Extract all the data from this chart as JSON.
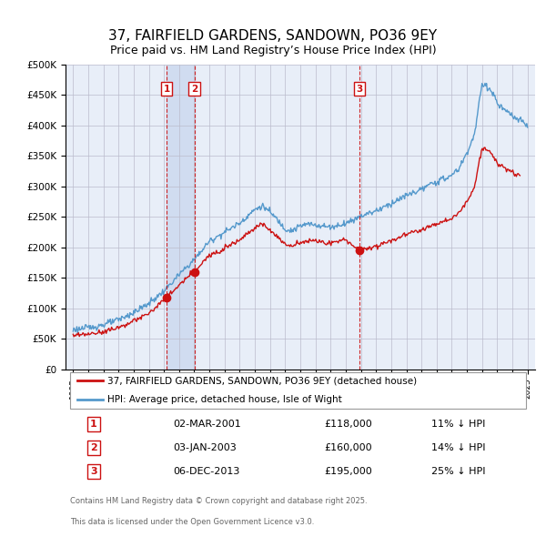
{
  "title": "37, FAIRFIELD GARDENS, SANDOWN, PO36 9EY",
  "subtitle": "Price paid vs. HM Land Registry’s House Price Index (HPI)",
  "legend_line1": "37, FAIRFIELD GARDENS, SANDOWN, PO36 9EY (detached house)",
  "legend_line2": "HPI: Average price, detached house, Isle of Wight",
  "footer1": "Contains HM Land Registry data © Crown copyright and database right 2025.",
  "footer2": "This data is licensed under the Open Government Licence v3.0.",
  "sale_dates": [
    "02-MAR-2001",
    "03-JAN-2003",
    "06-DEC-2013"
  ],
  "sale_prices": [
    118000,
    160000,
    195000
  ],
  "sale_hpi_diff": [
    "11% ↓ HPI",
    "14% ↓ HPI",
    "25% ↓ HPI"
  ],
  "sale_years": [
    2001.17,
    2003.01,
    2013.92
  ],
  "ylim": [
    0,
    500000
  ],
  "xlim": [
    1994.5,
    2025.5
  ],
  "background_color": "#ffffff",
  "plot_bg_color": "#e8eef8",
  "shade_color": "#d0dcf0",
  "grid_color": "#bbbbcc",
  "hpi_color": "#5599cc",
  "property_color": "#cc1111",
  "vline_color": "#cc1111",
  "title_fontsize": 11,
  "subtitle_fontsize": 9
}
